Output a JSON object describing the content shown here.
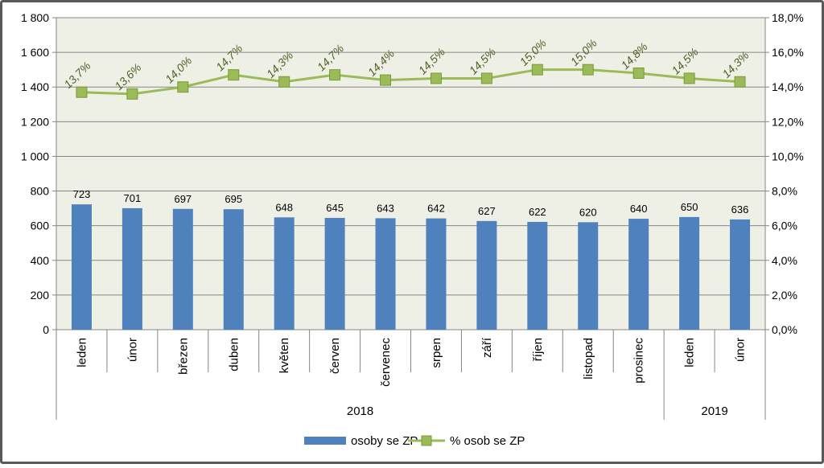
{
  "chart_data": {
    "type": "bar",
    "categories": [
      "leden",
      "únor",
      "březen",
      "duben",
      "květen",
      "červen",
      "červenec",
      "srpen",
      "září",
      "říjen",
      "listopad",
      "prosinec",
      "leden",
      "únor"
    ],
    "year_groups": [
      {
        "label": "2018",
        "count": 12
      },
      {
        "label": "2019",
        "count": 2
      }
    ],
    "series": [
      {
        "name": "osoby se ZP",
        "type": "bar",
        "axis": "left",
        "color": "#4f81bd",
        "values": [
          723,
          701,
          697,
          695,
          648,
          645,
          643,
          642,
          627,
          622,
          620,
          640,
          650,
          636
        ],
        "labels": [
          "723",
          "701",
          "697",
          "695",
          "648",
          "645",
          "643",
          "642",
          "627",
          "622",
          "620",
          "640",
          "650",
          "636"
        ]
      },
      {
        "name": "% osob se ZP",
        "type": "line",
        "axis": "right",
        "color": "#9bbb59",
        "values": [
          13.7,
          13.6,
          14.0,
          14.7,
          14.3,
          14.7,
          14.4,
          14.5,
          14.5,
          15.0,
          15.0,
          14.8,
          14.5,
          14.3
        ],
        "labels": [
          "13,7%",
          "13,6%",
          "14,0%",
          "14,7%",
          "14,3%",
          "14,7%",
          "14,4%",
          "14,5%",
          "14,5%",
          "15,0%",
          "15,0%",
          "14,8%",
          "14,5%",
          "14,3%"
        ]
      }
    ],
    "y_left": {
      "min": 0,
      "max": 1800,
      "ticks": [
        0,
        200,
        400,
        600,
        800,
        1000,
        1200,
        1400,
        1600,
        1800
      ],
      "tick_labels": [
        "0",
        "200",
        "400",
        "600",
        "800",
        "1 000",
        "1 200",
        "1 400",
        "1 600",
        "1 800"
      ]
    },
    "y_right": {
      "min": 0,
      "max": 18,
      "ticks": [
        0,
        2,
        4,
        6,
        8,
        10,
        12,
        14,
        16,
        18
      ],
      "tick_labels": [
        "0,0%",
        "2,0%",
        "4,0%",
        "6,0%",
        "8,0%",
        "10,0%",
        "12,0%",
        "14,0%",
        "16,0%",
        "18,0%"
      ]
    },
    "grid": true,
    "legend_position": "bottom",
    "plot_background": "#eef0e5",
    "frame_color": "#595959",
    "text_color": "#000000",
    "line_label_color": "#4f6228"
  }
}
